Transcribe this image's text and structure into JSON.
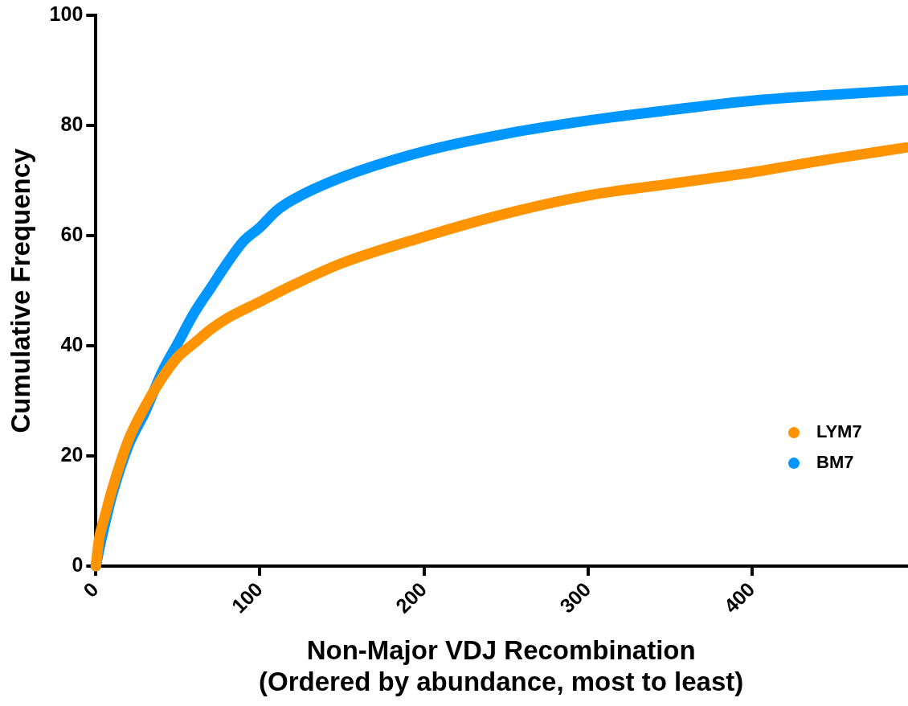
{
  "chart_data": {
    "type": "line",
    "xlabel": "Non-Major VDJ Recombination\n(Ordered by abundance, most to least)",
    "ylabel": "Cumulative Frequency",
    "xlim": [
      0,
      494
    ],
    "xticks": [
      0,
      100,
      200,
      300,
      400
    ],
    "ylim": [
      0,
      100
    ],
    "yticks": [
      0,
      20,
      40,
      60,
      80,
      100
    ],
    "grid": false,
    "legend": "bottom right",
    "line_style": "solid",
    "series": [
      {
        "name": "LYM7",
        "color": "#ff9300",
        "x": [
          0,
          2,
          5,
          10,
          20,
          30,
          40,
          50,
          60,
          70,
          80,
          100,
          120,
          150,
          200,
          250,
          300,
          350,
          400,
          450,
          494
        ],
        "values": [
          0,
          5,
          8.5,
          14,
          23,
          29,
          34,
          38,
          40.5,
          43,
          45,
          48,
          51,
          55,
          59.8,
          64,
          67.3,
          69.4,
          71.5,
          74,
          76
        ]
      },
      {
        "name": "BM7",
        "color": "#0096ff",
        "x": [
          0,
          2,
          5,
          10,
          20,
          30,
          40,
          50,
          60,
          70,
          80,
          90,
          100,
          110,
          120,
          150,
          200,
          250,
          300,
          350,
          400,
          450,
          494
        ],
        "values": [
          0,
          3,
          7,
          13,
          22,
          28,
          35,
          40.5,
          46,
          50.5,
          55,
          59,
          61.5,
          64.5,
          66.5,
          70.6,
          75.3,
          78.5,
          80.9,
          82.8,
          84.5,
          85.6,
          86.4
        ]
      }
    ]
  }
}
